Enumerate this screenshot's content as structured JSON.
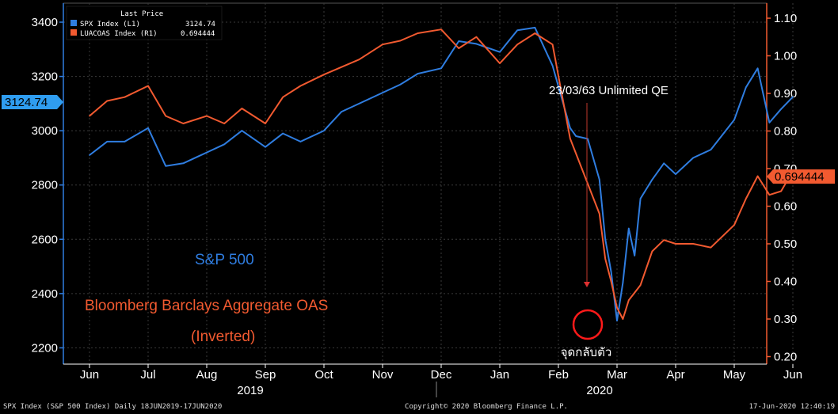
{
  "chart_data": {
    "type": "line",
    "title": "",
    "legend": {
      "header": "Last Price",
      "entries": [
        {
          "name": "SPX Index  (L1)",
          "value": "3124.74",
          "color": "#2f7de0"
        },
        {
          "name": "LUACOAS Index  (R1)",
          "value": "0.694444",
          "color": "#f25a30"
        }
      ]
    },
    "left_axis": {
      "ticks": [
        2200,
        2400,
        2600,
        2800,
        3000,
        3200,
        3400
      ],
      "range": [
        2140,
        3470
      ],
      "last_price_label": "3124.74",
      "last_price_value": 3124.74
    },
    "right_axis": {
      "ticks": [
        "1.10",
        "1.00",
        "0.90",
        "0.80",
        "0.70",
        "0.60",
        "0.50",
        "0.40",
        "0.30",
        "0.20"
      ],
      "range": [
        1.14,
        0.18
      ],
      "inverted": true,
      "last_price_label": "0.694444",
      "last_price_value": 0.694444
    },
    "x_months": [
      "Jun",
      "Jul",
      "Aug",
      "Sep",
      "Oct",
      "Nov",
      "Dec",
      "Jan",
      "Feb",
      "Mar",
      "Apr",
      "May",
      "Jun"
    ],
    "x_years": [
      "2019",
      "2020"
    ],
    "series": [
      {
        "name": "SPX Index",
        "axis": "left",
        "color": "#2f7de0",
        "x": [
          0,
          0.3,
          0.6,
          1.0,
          1.3,
          1.6,
          2.0,
          2.3,
          2.6,
          3.0,
          3.3,
          3.6,
          4.0,
          4.3,
          4.6,
          5.0,
          5.3,
          5.6,
          6.0,
          6.3,
          6.6,
          7.0,
          7.3,
          7.6,
          7.9,
          8.2,
          8.3,
          8.5,
          8.7,
          8.8,
          8.9,
          9.0,
          9.1,
          9.2,
          9.3,
          9.4,
          9.6,
          9.8,
          10.0,
          10.3,
          10.6,
          11.0,
          11.2,
          11.4,
          11.6,
          11.8,
          12.0
        ],
        "values": [
          2910,
          2960,
          2960,
          3010,
          2870,
          2880,
          2920,
          2950,
          3000,
          2940,
          2990,
          2960,
          3000,
          3070,
          3100,
          3140,
          3170,
          3210,
          3230,
          3330,
          3320,
          3290,
          3370,
          3380,
          3240,
          3010,
          2980,
          2970,
          2820,
          2600,
          2480,
          2300,
          2440,
          2640,
          2540,
          2750,
          2820,
          2880,
          2840,
          2900,
          2930,
          3040,
          3160,
          3230,
          3030,
          3080,
          3124.74
        ]
      },
      {
        "name": "LUACOAS Index",
        "axis": "right",
        "color": "#f25a30",
        "x": [
          0,
          0.3,
          0.6,
          1.0,
          1.3,
          1.6,
          2.0,
          2.3,
          2.6,
          3.0,
          3.3,
          3.6,
          4.0,
          4.3,
          4.6,
          5.0,
          5.3,
          5.6,
          6.0,
          6.3,
          6.6,
          7.0,
          7.3,
          7.6,
          7.9,
          8.2,
          8.5,
          8.7,
          8.8,
          8.9,
          9.0,
          9.1,
          9.2,
          9.4,
          9.6,
          9.8,
          10.0,
          10.3,
          10.6,
          11.0,
          11.2,
          11.4,
          11.6,
          11.8,
          12.0
        ],
        "values": [
          0.84,
          0.88,
          0.89,
          0.92,
          0.84,
          0.82,
          0.84,
          0.82,
          0.86,
          0.82,
          0.89,
          0.92,
          0.95,
          0.97,
          0.99,
          1.03,
          1.04,
          1.06,
          1.07,
          1.02,
          1.05,
          0.98,
          1.03,
          1.06,
          1.03,
          0.78,
          0.66,
          0.58,
          0.46,
          0.4,
          0.33,
          0.3,
          0.35,
          0.39,
          0.48,
          0.51,
          0.5,
          0.5,
          0.49,
          0.55,
          0.62,
          0.68,
          0.63,
          0.64,
          0.694444
        ]
      }
    ],
    "annotations": {
      "qe_label": "23/03/63 Unlimited QE",
      "spx_label": "S&P 500",
      "oas_label_line1": "Bloomberg Barclays Aggregate OAS",
      "oas_label_line2": "(Inverted)",
      "bottom_label": "จุดกลับตัว"
    }
  },
  "footer": {
    "left": "SPX Index (S&P 500 Index)  Daily 18JUN2019-17JUN2020",
    "center": "Copyright© 2020 Bloomberg Finance L.P.",
    "right": "17-Jun-2020 12:40:19"
  }
}
